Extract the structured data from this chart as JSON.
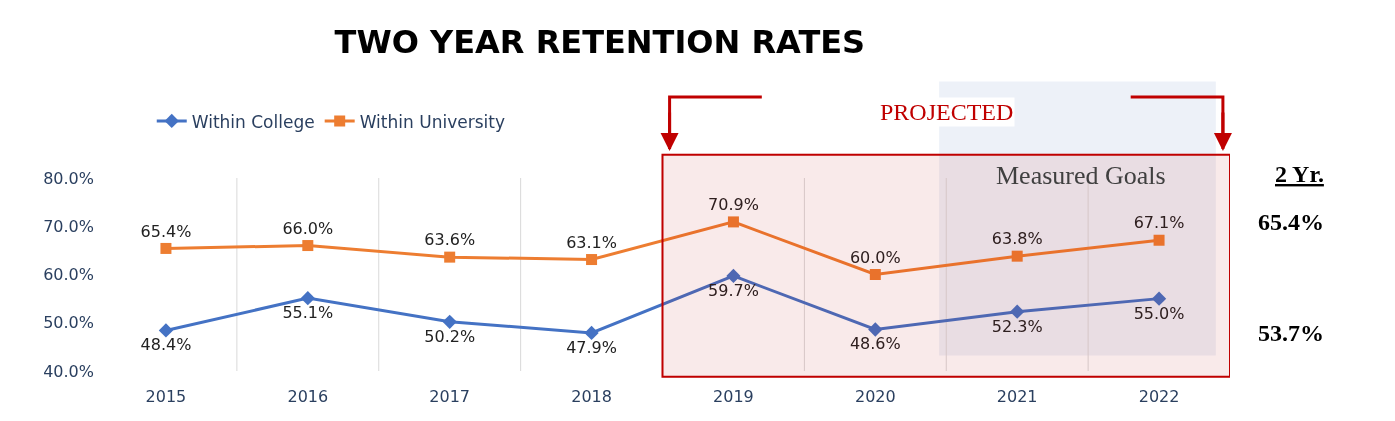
{
  "chart_data": {
    "type": "line",
    "title": "TWO YEAR RETENTION RATES",
    "categories": [
      "2015",
      "2016",
      "2017",
      "2018",
      "2019",
      "2020",
      "2021",
      "2022"
    ],
    "series": [
      {
        "name": "Within College",
        "color": "#4472c4",
        "marker": "diamond",
        "values": [
          48.4,
          55.1,
          50.2,
          47.9,
          59.7,
          48.6,
          52.3,
          55.0
        ],
        "value_labels": [
          "48.4%",
          "55.1%",
          "50.2%",
          "47.9%",
          "59.7%",
          "48.6%",
          "52.3%",
          "55.0%"
        ]
      },
      {
        "name": "Within University",
        "color": "#ed7d31",
        "marker": "square",
        "values": [
          65.4,
          66.0,
          63.6,
          63.1,
          70.9,
          60.0,
          63.8,
          67.1
        ],
        "value_labels": [
          "65.4%",
          "66.0%",
          "63.6%",
          "63.1%",
          "70.9%",
          "60.0%",
          "63.8%",
          "67.1%"
        ]
      }
    ],
    "ylim": [
      40,
      80
    ],
    "yticks": [
      {
        "value": 40,
        "label": "40.0%"
      },
      {
        "value": 50,
        "label": "50.0%"
      },
      {
        "value": 60,
        "label": "60.0%"
      },
      {
        "value": 70,
        "label": "70.0%"
      },
      {
        "value": 80,
        "label": "80.0%"
      }
    ],
    "grid": "x",
    "legend": "top left",
    "bands": [
      {
        "axis": "x",
        "from": "2019",
        "to": "2022",
        "label": "PROJECTED",
        "color": "#c00000"
      },
      {
        "axis": "x",
        "from": "2021",
        "to": "2022",
        "label": "Measured Goals",
        "color": "#dfe5f3"
      }
    ],
    "annotations": [
      "2 Yr.",
      "65.4%",
      "53.7%"
    ]
  }
}
